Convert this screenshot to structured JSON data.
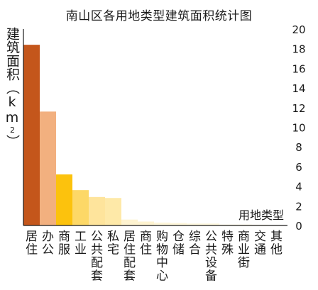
{
  "chart_data": {
    "type": "bar",
    "title": "南山区各用地类型建筑面积统计图",
    "ylabel_main": "建筑面积（km",
    "ylabel_sup": "2",
    "ylabel_tail": "）",
    "xlabel": "用地类型",
    "ylim": [
      0,
      20
    ],
    "yticks": [
      0,
      2,
      4,
      6,
      8,
      10,
      12,
      14,
      16,
      18,
      20
    ],
    "categories": [
      "居住",
      "办公",
      "商服",
      "工业",
      "公共配套",
      "私宅",
      "居住配套",
      "商住",
      "购物中心",
      "仓储",
      "综合",
      "公共设备",
      "特殊",
      "商业街",
      "交通",
      "其他"
    ],
    "values": [
      18.4,
      11.6,
      5.2,
      3.6,
      2.9,
      2.8,
      0.6,
      0.4,
      0.3,
      0.25,
      0.2,
      0.2,
      0.1,
      0.1,
      0.08,
      0.05
    ],
    "colors": [
      "#c4561b",
      "#f2b07f",
      "#fcc20d",
      "#fdd867",
      "#fee49c",
      "#fee9a8",
      "#fef3d0",
      "#fef3d0",
      "#fef6da",
      "#fef6da",
      "#fef7de",
      "#fef7de",
      "#fef8e2",
      "#fef8e2",
      "#fef9e6",
      "#fef9e6"
    ],
    "grid": false,
    "legend": "none"
  }
}
